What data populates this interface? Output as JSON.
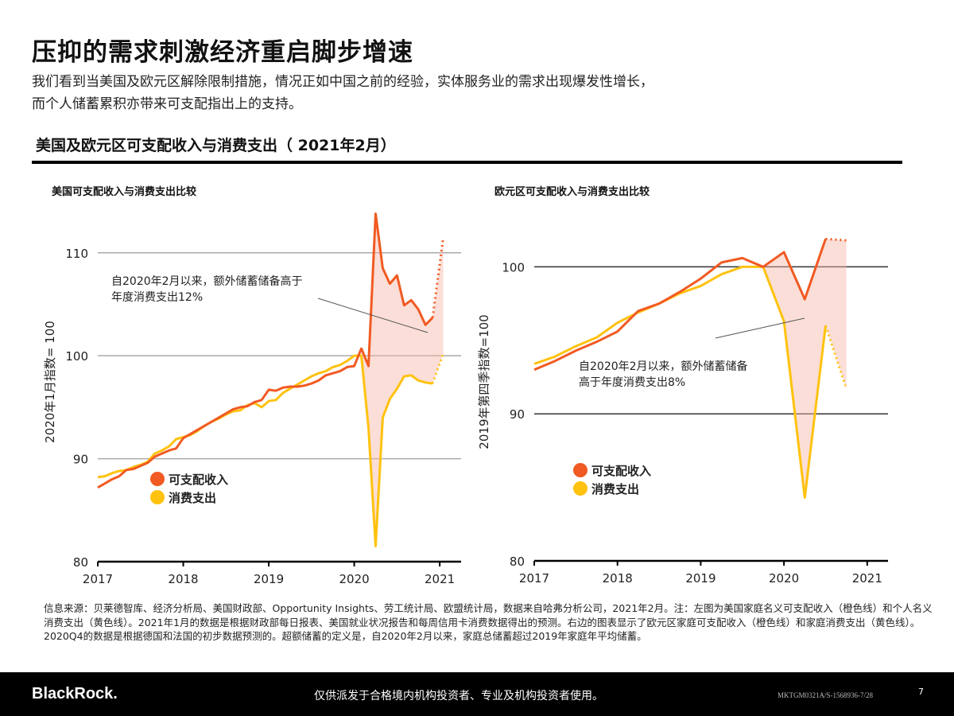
{
  "title": "压抑的需求刺激经济重启脚步增速",
  "subtitle_lines": [
    "我们看到当美国及欧元区解除限制措施，情况正如中国之前的经验，实体服务业的需求出现爆发性增长，",
    "而个人储蓄累积亦带来可支配指出上的支持。"
  ],
  "section_title": "美国及欧元区可支配收入与消费支出（ 2021年2月）",
  "colors": {
    "income": "#f15a22",
    "spending": "#ffc20e",
    "grid": "#999999",
    "shade": "#f7b5a6"
  },
  "chart_data": [
    {
      "type": "line",
      "title": "美国可支配收入与消费支出比较",
      "ylabel": "2020年1月指数= 100",
      "ylim": [
        80,
        114
      ],
      "yticks": [
        80,
        90,
        100,
        110
      ],
      "xlim": [
        2017,
        2021.25
      ],
      "xticks": [
        2017,
        2018,
        2019,
        2020,
        2021
      ],
      "grid": true,
      "legend": "bottom-left",
      "frequency": "monthly",
      "x_start": 2017,
      "annotation": "自2020年2月以来，额外储蓄储备高于年度消费支出12%",
      "series": [
        {
          "name": "可支配收入",
          "color": "#f15a22",
          "values": [
            87.2,
            87.6,
            88.0,
            88.3,
            88.9,
            89.0,
            89.3,
            89.6,
            90.2,
            90.5,
            90.8,
            91.0,
            92.0,
            92.4,
            92.8,
            93.2,
            93.6,
            94.0,
            94.4,
            94.8,
            95.0,
            95.1,
            95.5,
            95.7,
            96.7,
            96.6,
            96.9,
            97.0,
            97.0,
            97.1,
            97.3,
            97.6,
            98.1,
            98.3,
            98.5,
            98.9,
            99.0,
            100.7,
            99.0,
            113.8,
            108.5,
            107.0,
            107.8,
            104.9,
            105.4,
            104.5,
            103.0,
            103.7
          ],
          "forecast": [
            103.7,
            111.5
          ]
        },
        {
          "name": "消费支出",
          "color": "#ffc20e",
          "values": [
            88.2,
            88.3,
            88.6,
            88.8,
            88.9,
            89.2,
            89.4,
            89.7,
            90.5,
            90.8,
            91.2,
            91.9,
            92.1,
            92.3,
            92.7,
            93.2,
            93.6,
            93.9,
            94.3,
            94.6,
            94.7,
            95.2,
            95.4,
            95.0,
            95.6,
            95.7,
            96.4,
            96.8,
            97.2,
            97.6,
            98.0,
            98.3,
            98.5,
            98.9,
            99.1,
            99.5,
            100.0,
            100.0,
            93.0,
            81.5,
            94.0,
            95.8,
            96.8,
            98.0,
            98.1,
            97.6,
            97.4,
            97.3
          ],
          "forecast": [
            97.3,
            100.2
          ]
        }
      ]
    },
    {
      "type": "line",
      "title": "欧元区可支配收入与消费支出比较",
      "ylabel": "2019年第四季指数=100",
      "ylim": [
        80,
        103
      ],
      "yticks": [
        80,
        90,
        100
      ],
      "xlim": [
        2017,
        2021.25
      ],
      "xticks": [
        2017,
        2018,
        2019,
        2020,
        2021
      ],
      "grid": true,
      "legend": "bottom-left",
      "frequency": "quarterly",
      "x_start": 2017,
      "annotation": "自2020年2月以来，额外储蓄储备高于年度消费支出8%",
      "series": [
        {
          "name": "可支配收入",
          "color": "#f15a22",
          "values": [
            93.0,
            93.6,
            94.3,
            94.9,
            95.6,
            97.0,
            97.5,
            98.3,
            99.2,
            100.3,
            100.6,
            100.0,
            101.0,
            97.8,
            101.9
          ],
          "forecast": [
            101.9,
            101.8
          ]
        },
        {
          "name": "消费支出",
          "color": "#ffc20e",
          "values": [
            93.4,
            93.9,
            94.6,
            95.2,
            96.2,
            96.9,
            97.5,
            98.2,
            98.7,
            99.5,
            100.0,
            100.0,
            96.3,
            84.3,
            96.0
          ],
          "forecast": [
            96.0,
            91.7
          ]
        }
      ]
    }
  ],
  "annotation_lines": [
    [
      "自2020年2月以来，额外储蓄储备高于",
      "年度消费支出12%"
    ],
    [
      "自2020年2月以来，额外储蓄储备",
      "高于年度消费支出8%"
    ]
  ],
  "notes": "信息来源：贝莱德智库、经济分析局、美国财政部、Opportunity Insights、劳工统计局、欧盟统计局，数据来自哈弗分析公司，2021年2月。注：左图为美国家庭名义可支配收入（橙色线）和个人名义消费支出（黄色线）。2021年1月的数据是根据财政部每日报表、美国就业状况报告和每周信用卡消费数据得出的预测。右边的图表显示了欧元区家庭可支配收入（橙色线）和家庭消费支出（黄色线）。2020Q4的数据是根据德国和法国的初步数据预测的。超额储蓄的定义是，自2020年2月以来，家庭总储蓄超过2019年家庭年平均储蓄。",
  "footer": {
    "logo": "BlackRock.",
    "disclaimer": "仅供派发于合格境内机构投资者、专业及机构投资者使用。",
    "code": "MKTGM0321A/S-1568936-7/28",
    "page": "7"
  }
}
